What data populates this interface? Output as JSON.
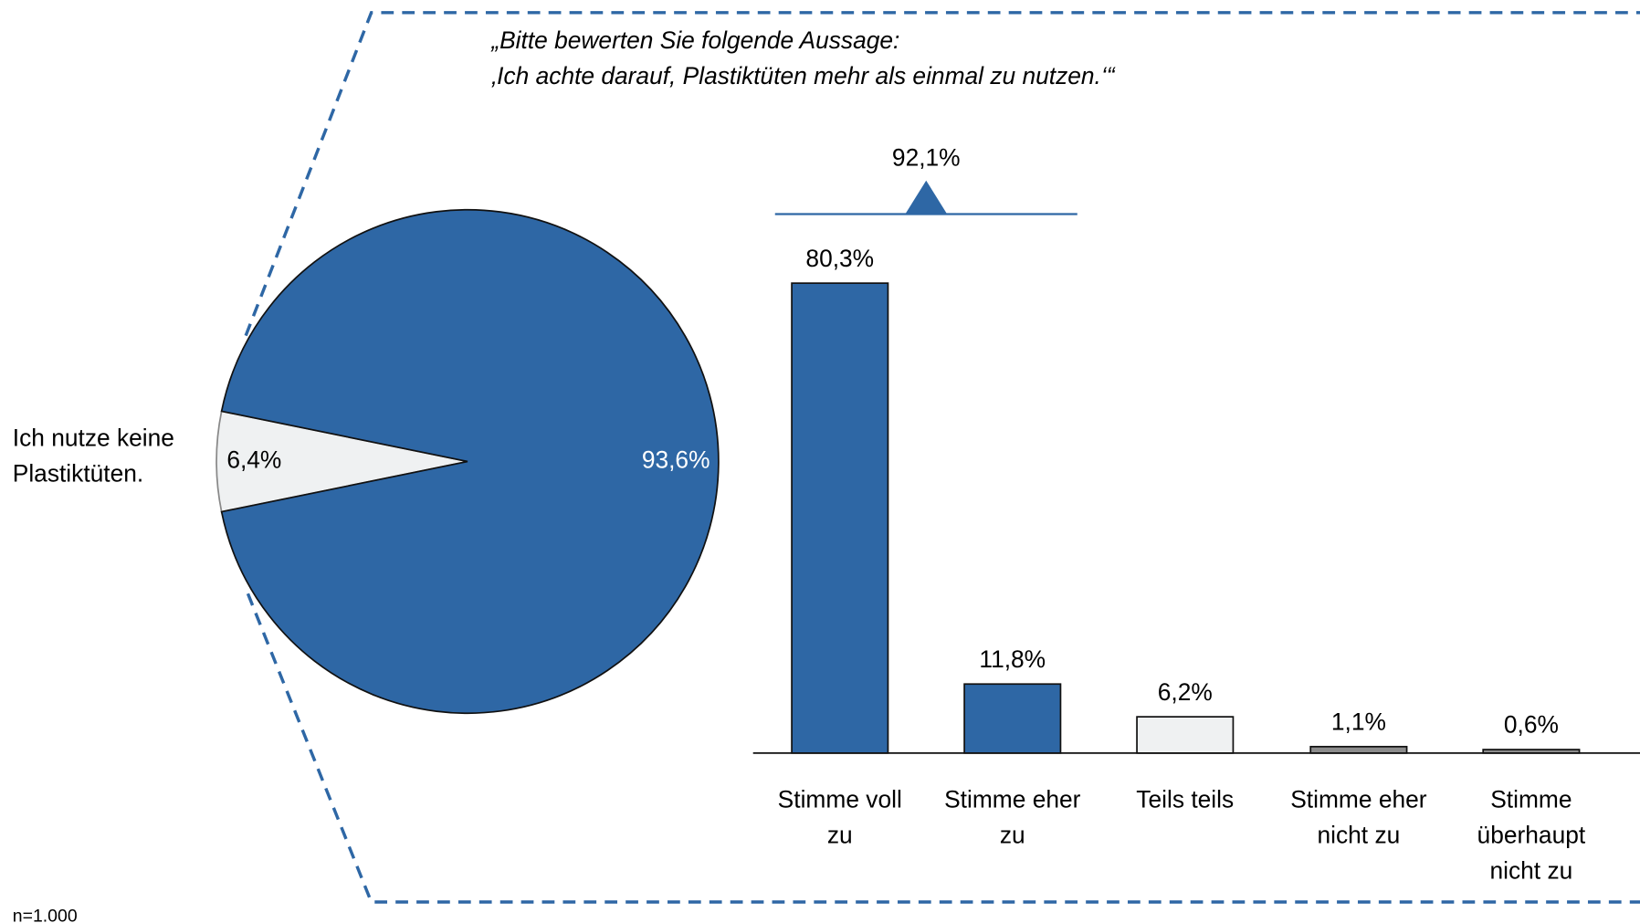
{
  "chart_data": [
    {
      "type": "pie",
      "categories": [
        "Ich nutze keine Plastiktüten.",
        null
      ],
      "values": [
        6.4,
        93.6
      ],
      "value_labels": [
        "6,4%",
        "93,6%"
      ],
      "colors": [
        "#eff1f2",
        "#2e67a5"
      ],
      "label_colors": [
        "#000000",
        "#ffffff"
      ]
    },
    {
      "type": "bar",
      "title": [
        "„Bitte bewerten Sie folgende Aussage:",
        "‚Ich achte darauf, Plastiktüten mehr als einmal zu nutzen.‘“"
      ],
      "categories": [
        "Stimme voll zu",
        "Stimme eher zu",
        "Teils teils",
        "Stimme eher nicht zu",
        "Stimme überhaupt nicht zu"
      ],
      "values": [
        80.3,
        11.8,
        6.2,
        1.1,
        0.6
      ],
      "value_labels": [
        "80,3%",
        "11,8%",
        "6,2%",
        "1,1%",
        "0,6%"
      ],
      "colors": [
        "#2e67a5",
        "#2e67a5",
        "#eff1f2",
        "#8c8c8c",
        "#8c8c8c"
      ],
      "ylim": [
        0,
        88
      ],
      "annotation": {
        "value": 92.1,
        "value_label": "92,1%"
      }
    }
  ],
  "footnote": "n=1.000"
}
